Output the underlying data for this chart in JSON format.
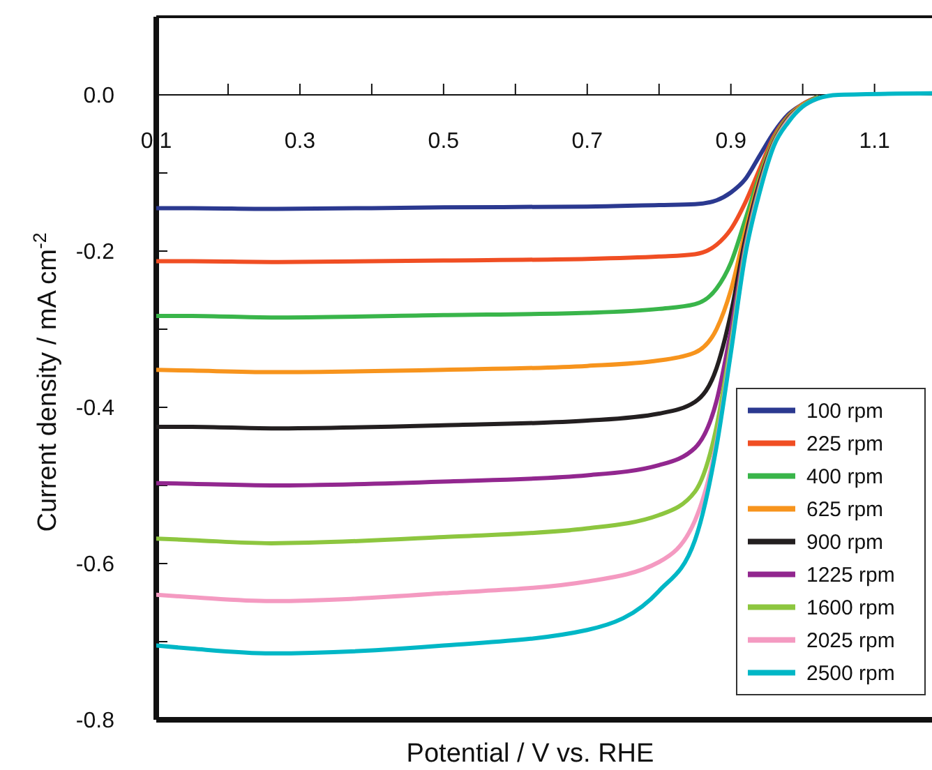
{
  "chart_data": {
    "type": "line",
    "xlabel": "Potential / V vs. RHE",
    "ylabel": "Current density / mA cm$^{-2}$",
    "x": [
      0.1,
      0.15,
      0.26,
      0.5,
      0.7,
      0.8,
      0.85,
      0.88,
      0.9,
      0.92,
      0.94,
      0.96,
      0.98,
      1.0,
      1.02,
      1.05,
      1.18
    ],
    "xlim": [
      0.1,
      1.18
    ],
    "xticks": [
      0.1,
      {
        "value": 0.2,
        "label": null
      },
      0.3,
      {
        "value": 0.4,
        "label": null
      },
      0.5,
      {
        "value": 0.6,
        "label": null
      },
      0.7,
      {
        "value": 0.8,
        "label": null
      },
      0.9,
      {
        "value": 1.0,
        "label": null
      },
      1.1
    ],
    "ylim": [
      -0.8,
      0.1
    ],
    "yticks": [
      -0.8,
      {
        "value": -0.7,
        "label": null
      },
      -0.6,
      {
        "value": -0.5,
        "label": null
      },
      -0.4,
      {
        "value": -0.3,
        "label": null
      },
      -0.2,
      {
        "value": -0.1,
        "label": null
      },
      {
        "value": 0,
        "label": "0.0"
      }
    ],
    "legend": "bottom right",
    "marker": "none",
    "line_style": "solid",
    "grid": false,
    "series": [
      {
        "name": "100 rpm",
        "color": "#2b3990",
        "values": [
          -0.145,
          -0.145,
          -0.146,
          -0.144,
          -0.143,
          -0.141,
          -0.14,
          -0.135,
          -0.125,
          -0.108,
          -0.078,
          -0.048,
          -0.025,
          -0.012,
          -0.003,
          null,
          null
        ]
      },
      {
        "name": "225 rpm",
        "color": "#f04e23",
        "values": [
          -0.213,
          -0.213,
          -0.214,
          -0.212,
          -0.21,
          -0.207,
          -0.204,
          -0.192,
          -0.172,
          -0.138,
          -0.095,
          -0.053,
          -0.027,
          -0.012,
          -0.003,
          null,
          null
        ]
      },
      {
        "name": "400 rpm",
        "color": "#39b54a",
        "values": [
          -0.283,
          -0.283,
          -0.285,
          -0.282,
          -0.279,
          -0.274,
          -0.268,
          -0.248,
          -0.215,
          -0.16,
          -0.103,
          -0.056,
          -0.028,
          -0.013,
          -0.003,
          null,
          null
        ]
      },
      {
        "name": "625 rpm",
        "color": "#f7941d",
        "values": [
          -0.352,
          -0.353,
          -0.355,
          -0.352,
          -0.347,
          -0.34,
          -0.33,
          -0.3,
          -0.25,
          -0.175,
          -0.108,
          -0.058,
          -0.029,
          -0.013,
          -0.004,
          null,
          null
        ]
      },
      {
        "name": "900 rpm",
        "color": "#231f20",
        "values": [
          -0.425,
          -0.425,
          -0.427,
          -0.423,
          -0.417,
          -0.408,
          -0.393,
          -0.35,
          -0.28,
          -0.185,
          -0.112,
          -0.06,
          -0.03,
          -0.014,
          -0.004,
          null,
          null
        ]
      },
      {
        "name": "1225 rpm",
        "color": "#92278f",
        "values": [
          -0.497,
          -0.498,
          -0.5,
          -0.495,
          -0.487,
          -0.474,
          -0.452,
          -0.392,
          -0.302,
          -0.193,
          -0.116,
          -0.061,
          -0.031,
          -0.014,
          -0.004,
          null,
          null
        ]
      },
      {
        "name": "1600 rpm",
        "color": "#8dc63f",
        "values": [
          -0.568,
          -0.57,
          -0.574,
          -0.566,
          -0.555,
          -0.538,
          -0.508,
          -0.425,
          -0.318,
          -0.198,
          -0.119,
          -0.062,
          -0.032,
          -0.014,
          -0.004,
          null,
          null
        ]
      },
      {
        "name": "2025 rpm",
        "color": "#f49ac1",
        "values": [
          -0.64,
          -0.643,
          -0.648,
          -0.638,
          -0.623,
          -0.598,
          -0.545,
          -0.445,
          -0.326,
          -0.202,
          -0.122,
          -0.064,
          -0.033,
          -0.015,
          -0.005,
          null,
          null
        ]
      },
      {
        "name": "2500 rpm",
        "color": "#00b7c6",
        "values": [
          -0.705,
          -0.709,
          -0.715,
          -0.705,
          -0.685,
          -0.635,
          -0.57,
          -0.45,
          -0.33,
          -0.205,
          -0.125,
          -0.065,
          -0.035,
          -0.015,
          -0.005,
          0,
          0.002
        ]
      }
    ]
  }
}
